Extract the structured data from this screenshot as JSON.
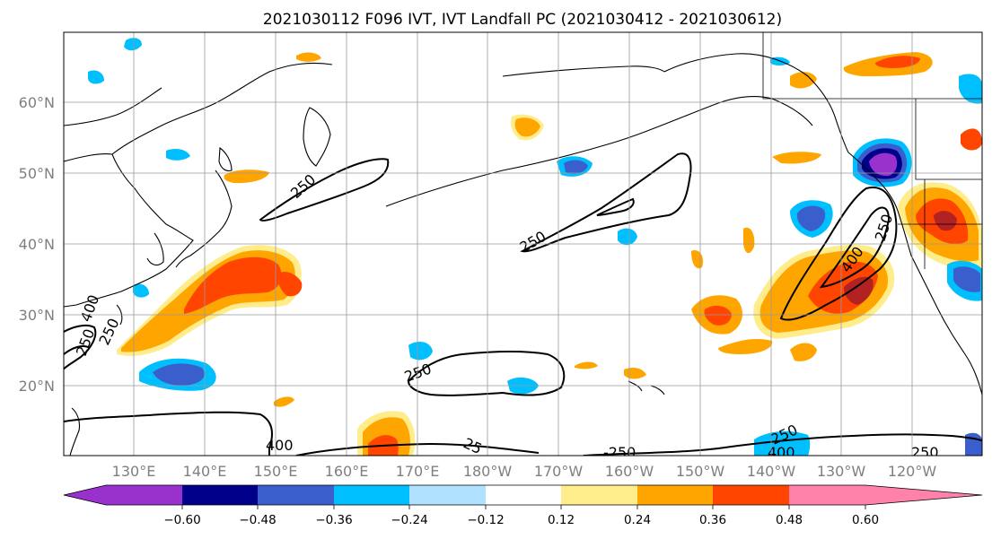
{
  "title": "2021030112 F096 IVT, IVT Landfall PC (2021030412 - 2021030612)",
  "lat_labels": [
    "60°N",
    "50°N",
    "40°N",
    "30°N",
    "20°N"
  ],
  "lon_labels": [
    "130°E",
    "140°E",
    "150°E",
    "160°E",
    "170°E",
    "180°W",
    "170°W",
    "160°W",
    "150°W",
    "140°W",
    "130°W",
    "120°W"
  ],
  "colorbar": {
    "colors": [
      "#9932cc",
      "#00008b",
      "#3a5fcd",
      "#00bfff",
      "#b0e2ff",
      "#ffffff",
      "#ffec8b",
      "#ffa500",
      "#ff4500",
      "#b22222",
      "#ff82ab"
    ],
    "tick_labels": [
      "−0.60",
      "−0.48",
      "−0.36",
      "−0.24",
      "−0.12",
      "0.12",
      "0.24",
      "0.36",
      "0.48",
      "0.60"
    ]
  },
  "contour_labels": [
    "250",
    "250",
    "250",
    "250",
    "250",
    "400",
    "250",
    "400",
    "400",
    "25",
    "-250",
    "250",
    "400",
    "250"
  ]
}
